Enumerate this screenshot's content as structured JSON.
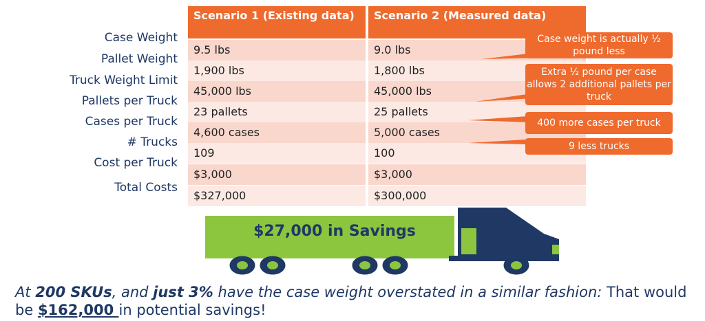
{
  "row_labels": [
    "Case Weight",
    "Pallet Weight",
    "Truck Weight Limit",
    "Pallets per Truck",
    "Cases per Truck",
    "# Trucks",
    "Cost per Truck",
    "Total Costs"
  ],
  "table": {
    "headers": [
      "Scenario 1 (Existing data)",
      "Scenario 2 (Measured data)"
    ],
    "rows": [
      [
        "9.5 lbs",
        "9.0 lbs"
      ],
      [
        "1,900 lbs",
        "1,800 lbs"
      ],
      [
        "45,000 lbs",
        "45,000 lbs"
      ],
      [
        "23 pallets",
        "25 pallets"
      ],
      [
        "4,600 cases",
        "5,000 cases"
      ],
      [
        "109",
        "100"
      ],
      [
        "$3,000",
        "$3,000"
      ],
      [
        "$327,000",
        "$300,000"
      ]
    ]
  },
  "callouts": [
    "Case weight is actually ½ pound less",
    "Extra ½ pound per case allows 2 additional pallets per truck",
    "400 more cases per truck",
    "9 less trucks"
  ],
  "truck": {
    "savings_label": "$27,000 in Savings",
    "trailer_color": "#8cc63f",
    "cab_color": "#1f3864"
  },
  "footer": {
    "part1": "At ",
    "bold1": "200 SKUs",
    "part2": ", and ",
    "bold2": "just 3%",
    "part3": " have the case weight overstated in a similar fashion: ",
    "part4": "That would be ",
    "amount": "$162,000 ",
    "part5": "in potential savings!"
  },
  "colors": {
    "accent": "#ef6a2d",
    "text": "#1f3864",
    "row_dark": "#f9d7cd",
    "row_light": "#fce9e3"
  }
}
